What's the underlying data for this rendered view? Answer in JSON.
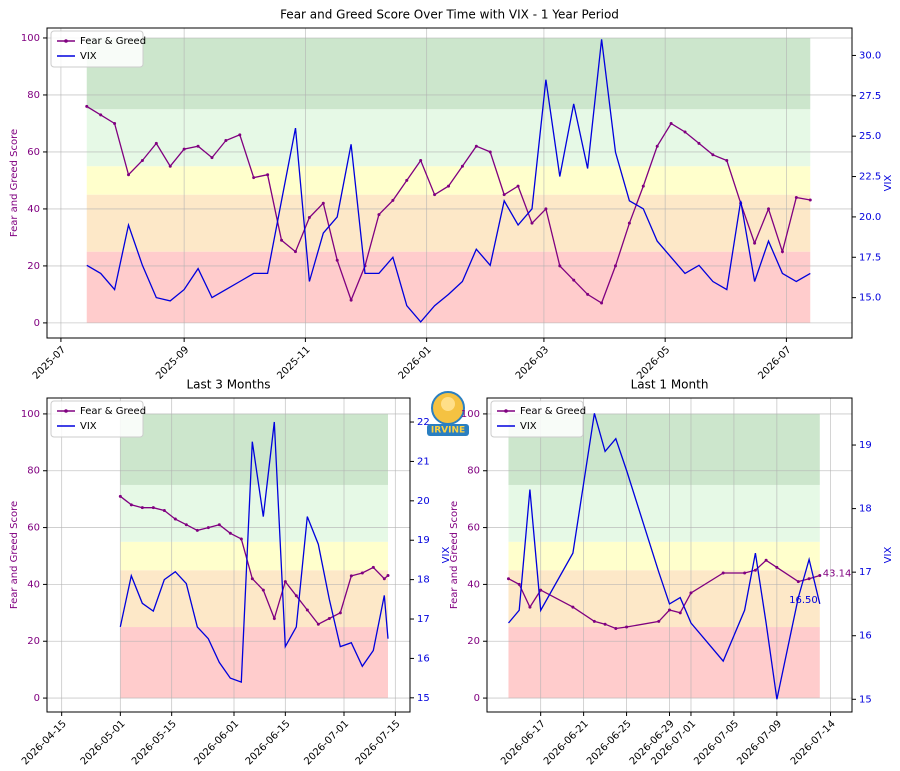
{
  "logo": {
    "text": "IRVINE"
  },
  "zones": [
    {
      "from": 0,
      "to": 25,
      "color": "#ffcccc"
    },
    {
      "from": 25,
      "to": 45,
      "color": "#fde8c8"
    },
    {
      "from": 45,
      "to": 55,
      "color": "#ffffcc"
    },
    {
      "from": 55,
      "to": 75,
      "color": "#e6f9e6"
    },
    {
      "from": 75,
      "to": 100,
      "color": "#cce6cc"
    }
  ],
  "chart_data": [
    {
      "type": "line",
      "title": "Fear and Greed Score Over Time with VIX - 1 Year Period",
      "ylabel": "Fear and Greed Score",
      "y2label": "VIX",
      "legend": "upper left",
      "grid": true,
      "xlim": [
        "2025-06-24",
        "2026-08-03"
      ],
      "xticks": [
        {
          "value": "2025-07-01",
          "label": "2025-07"
        },
        {
          "value": "2025-09-01",
          "label": "2025-09"
        },
        {
          "value": "2025-11-01",
          "label": "2025-11"
        },
        {
          "value": "2026-01-01",
          "label": "2026-01"
        },
        {
          "value": "2026-03-01",
          "label": "2026-03"
        },
        {
          "value": "2026-05-01",
          "label": "2026-05"
        },
        {
          "value": "2026-07-01",
          "label": "2026-07"
        }
      ],
      "ylim": [
        -5.3,
        103.5
      ],
      "yticks": [
        0,
        20,
        40,
        60,
        80,
        100
      ],
      "y2lim": [
        12.5,
        31.7
      ],
      "y2ticks": [
        {
          "value": 15,
          "label": "15.0"
        },
        {
          "value": 17.5,
          "label": "17.5"
        },
        {
          "value": 20,
          "label": "20.0"
        },
        {
          "value": 22.5,
          "label": "22.5"
        },
        {
          "value": 25,
          "label": "25.0"
        },
        {
          "value": 27.5,
          "label": "27.5"
        },
        {
          "value": 30,
          "label": "30.0"
        }
      ],
      "x": [
        "2025-07-14",
        "2025-07-21",
        "2025-07-28",
        "2025-08-04",
        "2025-08-11",
        "2025-08-18",
        "2025-08-25",
        "2025-09-01",
        "2025-09-08",
        "2025-09-15",
        "2025-09-22",
        "2025-09-29",
        "2025-10-06",
        "2025-10-13",
        "2025-10-20",
        "2025-10-27",
        "2025-11-03",
        "2025-11-10",
        "2025-11-17",
        "2025-11-24",
        "2025-12-01",
        "2025-12-08",
        "2025-12-15",
        "2025-12-22",
        "2025-12-29",
        "2026-01-05",
        "2026-01-12",
        "2026-01-19",
        "2026-01-26",
        "2026-02-02",
        "2026-02-09",
        "2026-02-16",
        "2026-02-23",
        "2026-03-02",
        "2026-03-09",
        "2026-03-16",
        "2026-03-23",
        "2026-03-30",
        "2026-04-06",
        "2026-04-13",
        "2026-04-20",
        "2026-04-27",
        "2026-05-04",
        "2026-05-11",
        "2026-05-18",
        "2026-05-25",
        "2026-06-01",
        "2026-06-08",
        "2026-06-15",
        "2026-06-22",
        "2026-06-29",
        "2026-07-06",
        "2026-07-13"
      ],
      "series": [
        {
          "name": "Fear & Greed",
          "color": "#800080",
          "axis": "y",
          "marker": true,
          "values": [
            76,
            73,
            70,
            52,
            57,
            63,
            55,
            61,
            62,
            58,
            64,
            66,
            51,
            52,
            29,
            25,
            37,
            42,
            22,
            8,
            20,
            38,
            43,
            50,
            57,
            45,
            48,
            55,
            62,
            60,
            45,
            48,
            35,
            40,
            20,
            15,
            10,
            7,
            20,
            35,
            48,
            62,
            70,
            67,
            63,
            59,
            57,
            42,
            28,
            40,
            25,
            44,
            43.14
          ]
        },
        {
          "name": "VIX",
          "color": "#0000dd",
          "axis": "y2",
          "values": [
            17.0,
            16.5,
            15.5,
            19.5,
            17.0,
            15.0,
            14.8,
            15.5,
            16.8,
            15.0,
            15.5,
            16.0,
            16.5,
            16.5,
            21.0,
            25.5,
            16.0,
            19.0,
            20.0,
            24.5,
            16.5,
            16.5,
            17.5,
            14.5,
            13.5,
            14.5,
            15.2,
            16.0,
            18.0,
            17.0,
            21.0,
            19.5,
            20.5,
            28.5,
            22.5,
            27.0,
            23.0,
            31.0,
            24.0,
            21.0,
            20.5,
            18.5,
            17.5,
            16.5,
            17.0,
            16.0,
            15.5,
            21.0,
            16.0,
            18.5,
            16.5,
            16.0,
            16.5
          ]
        }
      ]
    },
    {
      "type": "line",
      "title": "Last 3 Months",
      "ylabel": "Fear and Greed Score",
      "y2label": "VIX",
      "legend": "upper left",
      "grid": true,
      "xlim": [
        "2026-04-11",
        "2026-07-19"
      ],
      "xticks": [
        {
          "value": "2026-04-15",
          "label": "2026-04-15"
        },
        {
          "value": "2026-05-01",
          "label": "2026-05-01"
        },
        {
          "value": "2026-05-15",
          "label": "2026-05-15"
        },
        {
          "value": "2026-06-01",
          "label": "2026-06-01"
        },
        {
          "value": "2026-06-15",
          "label": "2026-06-15"
        },
        {
          "value": "2026-07-01",
          "label": "2026-07-01"
        },
        {
          "value": "2026-07-15",
          "label": "2026-07-15"
        }
      ],
      "ylim": [
        -4.9,
        105.6
      ],
      "yticks": [
        0,
        20,
        40,
        60,
        80,
        100
      ],
      "y2lim": [
        14.64,
        22.61
      ],
      "y2ticks": [
        15,
        16,
        17,
        18,
        19,
        20,
        21,
        22
      ],
      "x": [
        "2026-05-01",
        "2026-05-04",
        "2026-05-07",
        "2026-05-10",
        "2026-05-13",
        "2026-05-16",
        "2026-05-19",
        "2026-05-22",
        "2026-05-25",
        "2026-05-28",
        "2026-05-31",
        "2026-06-03",
        "2026-06-06",
        "2026-06-09",
        "2026-06-12",
        "2026-06-15",
        "2026-06-18",
        "2026-06-21",
        "2026-06-24",
        "2026-06-27",
        "2026-06-30",
        "2026-07-03",
        "2026-07-06",
        "2026-07-09",
        "2026-07-12",
        "2026-07-13"
      ],
      "series": [
        {
          "name": "Fear & Greed",
          "color": "#800080",
          "axis": "y",
          "marker": true,
          "values": [
            71,
            68,
            67,
            67,
            66,
            63,
            61,
            59,
            60,
            61,
            58,
            56,
            42,
            38,
            28,
            41,
            36,
            31,
            26,
            28,
            30,
            43,
            44,
            46,
            42,
            43.14
          ]
        },
        {
          "name": "VIX",
          "color": "#0000dd",
          "axis": "y2",
          "values": [
            16.8,
            18.1,
            17.4,
            17.2,
            18.0,
            18.2,
            17.9,
            16.8,
            16.5,
            15.9,
            15.5,
            15.4,
            21.5,
            19.6,
            22.0,
            16.3,
            16.8,
            19.6,
            18.9,
            17.5,
            16.3,
            16.4,
            15.8,
            16.2,
            17.6,
            16.5
          ]
        }
      ]
    },
    {
      "type": "line",
      "title": "Last 1 Month",
      "ylabel": "Fear and Greed Score",
      "y2label": "VIX",
      "legend": "upper left",
      "grid": true,
      "xlim": [
        "2026-06-12",
        "2026-07-16"
      ],
      "xticks": [
        {
          "value": "2026-06-17",
          "label": "2026-06-17"
        },
        {
          "value": "2026-06-21",
          "label": "2026-06-21"
        },
        {
          "value": "2026-06-25",
          "label": "2026-06-25"
        },
        {
          "value": "2026-06-29",
          "label": "2026-06-29"
        },
        {
          "value": "2026-07-01",
          "label": "2026-07-01"
        },
        {
          "value": "2026-07-05",
          "label": "2026-07-05"
        },
        {
          "value": "2026-07-09",
          "label": "2026-07-09"
        },
        {
          "value": "2026-07-14",
          "label": "2026-07-14"
        }
      ],
      "ylim": [
        -4.9,
        105.6
      ],
      "yticks": [
        0,
        20,
        40,
        60,
        80,
        100
      ],
      "y2lim": [
        14.8,
        19.74
      ],
      "y2ticks": [
        15,
        16,
        17,
        18,
        19
      ],
      "x": [
        "2026-06-14",
        "2026-06-15",
        "2026-06-16",
        "2026-06-17",
        "2026-06-20",
        "2026-06-22",
        "2026-06-23",
        "2026-06-24",
        "2026-06-25",
        "2026-06-28",
        "2026-06-29",
        "2026-06-30",
        "2026-07-01",
        "2026-07-04",
        "2026-07-06",
        "2026-07-07",
        "2026-07-08",
        "2026-07-09",
        "2026-07-11",
        "2026-07-12",
        "2026-07-13"
      ],
      "series": [
        {
          "name": "Fear & Greed",
          "color": "#800080",
          "axis": "y",
          "marker": true,
          "values": [
            42,
            40,
            32,
            38,
            32,
            27,
            26,
            24.5,
            25,
            27,
            31,
            30,
            37,
            44,
            44,
            45,
            48.5,
            46,
            41,
            42,
            43.14
          ]
        },
        {
          "name": "VIX",
          "color": "#0000dd",
          "axis": "y2",
          "values": [
            16.2,
            16.4,
            18.3,
            16.4,
            17.3,
            19.5,
            18.9,
            19.1,
            18.6,
            17.0,
            16.5,
            16.6,
            16.2,
            15.6,
            16.4,
            17.3,
            16.2,
            15.0,
            16.6,
            17.2,
            16.5
          ]
        }
      ],
      "annotations": [
        {
          "value": 43.14,
          "axis": "y",
          "color": "#800080"
        },
        {
          "value": 16.5,
          "label": "16.50",
          "axis": "y2",
          "color": "#0000dd"
        }
      ]
    }
  ]
}
